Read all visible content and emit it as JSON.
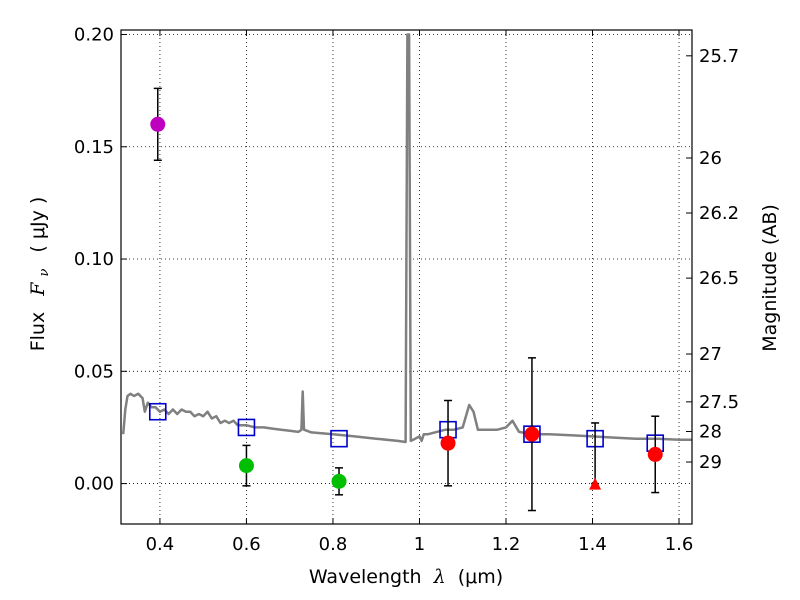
{
  "chart_data": {
    "type": "scatter",
    "xlabel": {
      "prefix": "Wavelength",
      "symbol": "λ",
      "unit": "(μm)"
    },
    "ylabel": {
      "prefix": "Flux",
      "symbol": "F",
      "subscript": "ν",
      "unit": "( μJy )"
    },
    "ylabel_right": "Magnitude (AB)",
    "xlim": [
      0.31,
      1.63
    ],
    "ylim": [
      -0.018,
      0.202
    ],
    "x_ticks": [
      0.4,
      0.6,
      0.8,
      1.0,
      1.2,
      1.4,
      1.6
    ],
    "x_tick_labels": [
      "0.4",
      "0.6",
      "0.8",
      "1",
      "1.2",
      "1.4",
      "1.6"
    ],
    "y_ticks": [
      0.0,
      0.05,
      0.1,
      0.15,
      0.2
    ],
    "y_tick_labels": [
      "0.00",
      "0.05",
      "0.10",
      "0.15",
      "0.20"
    ],
    "right_ticks": [
      {
        "label": "25.7",
        "flux": 0.1905
      },
      {
        "label": "26",
        "flux": 0.145
      },
      {
        "label": "26.2",
        "flux": 0.1205
      },
      {
        "label": "26.5",
        "flux": 0.0915
      },
      {
        "label": "27",
        "flux": 0.0577
      },
      {
        "label": "27.5",
        "flux": 0.0364
      },
      {
        "label": "28",
        "flux": 0.0232
      },
      {
        "label": "29",
        "flux": 0.0096
      }
    ],
    "grid": true,
    "colors": {
      "purple": "#bf00bf",
      "green": "#00bf00",
      "red": "#ff0000",
      "blue": "#0000cc",
      "model": "#808080"
    },
    "measurements": [
      {
        "x": 0.395,
        "y": 0.16,
        "err": 0.016,
        "color": "purple"
      },
      {
        "x": 0.6,
        "y": 0.008,
        "err": 0.009,
        "color": "green"
      },
      {
        "x": 0.814,
        "y": 0.001,
        "err": 0.006,
        "color": "green"
      },
      {
        "x": 1.066,
        "y": 0.018,
        "err": 0.019,
        "color": "red"
      },
      {
        "x": 1.26,
        "y": 0.022,
        "err": 0.034,
        "color": "red"
      },
      {
        "x": 1.545,
        "y": 0.013,
        "err": 0.017,
        "color": "red"
      }
    ],
    "upper_limits": [
      {
        "x": 1.406,
        "y": 0.0,
        "err_up": 0.027,
        "err_down": 0.0,
        "color": "red"
      }
    ],
    "model_points": [
      {
        "x": 0.395,
        "y": 0.032
      },
      {
        "x": 0.6,
        "y": 0.025
      },
      {
        "x": 0.814,
        "y": 0.02
      },
      {
        "x": 1.066,
        "y": 0.024
      },
      {
        "x": 1.26,
        "y": 0.022
      },
      {
        "x": 1.406,
        "y": 0.02
      },
      {
        "x": 1.545,
        "y": 0.018
      }
    ],
    "model_spectrum": [
      [
        0.315,
        0.022
      ],
      [
        0.32,
        0.033
      ],
      [
        0.325,
        0.039
      ],
      [
        0.332,
        0.04
      ],
      [
        0.34,
        0.039
      ],
      [
        0.35,
        0.04
      ],
      [
        0.36,
        0.038
      ],
      [
        0.365,
        0.032
      ],
      [
        0.372,
        0.036
      ],
      [
        0.38,
        0.034
      ],
      [
        0.39,
        0.034
      ],
      [
        0.4,
        0.032
      ],
      [
        0.41,
        0.033
      ],
      [
        0.42,
        0.031
      ],
      [
        0.43,
        0.033
      ],
      [
        0.44,
        0.031
      ],
      [
        0.45,
        0.033
      ],
      [
        0.46,
        0.032
      ],
      [
        0.47,
        0.032
      ],
      [
        0.48,
        0.03
      ],
      [
        0.49,
        0.031
      ],
      [
        0.5,
        0.03
      ],
      [
        0.51,
        0.032
      ],
      [
        0.52,
        0.029
      ],
      [
        0.53,
        0.03
      ],
      [
        0.54,
        0.027
      ],
      [
        0.55,
        0.028
      ],
      [
        0.56,
        0.027
      ],
      [
        0.57,
        0.028
      ],
      [
        0.58,
        0.026
      ],
      [
        0.6,
        0.026
      ],
      [
        0.62,
        0.025
      ],
      [
        0.64,
        0.025
      ],
      [
        0.66,
        0.0245
      ],
      [
        0.68,
        0.024
      ],
      [
        0.7,
        0.0235
      ],
      [
        0.72,
        0.023
      ],
      [
        0.727,
        0.024
      ],
      [
        0.73,
        0.041
      ],
      [
        0.733,
        0.024
      ],
      [
        0.75,
        0.0228
      ],
      [
        0.8,
        0.022
      ],
      [
        0.85,
        0.021
      ],
      [
        0.9,
        0.02
      ],
      [
        0.95,
        0.019
      ],
      [
        0.968,
        0.0185
      ],
      [
        0.972,
        0.2
      ],
      [
        0.976,
        0.2
      ],
      [
        0.98,
        0.019
      ],
      [
        0.99,
        0.02
      ],
      [
        1.0,
        0.021
      ],
      [
        1.005,
        0.019
      ],
      [
        1.01,
        0.022
      ],
      [
        1.02,
        0.022
      ],
      [
        1.04,
        0.023
      ],
      [
        1.06,
        0.024
      ],
      [
        1.08,
        0.024
      ],
      [
        1.1,
        0.025
      ],
      [
        1.115,
        0.035
      ],
      [
        1.125,
        0.032
      ],
      [
        1.135,
        0.024
      ],
      [
        1.15,
        0.024
      ],
      [
        1.18,
        0.024
      ],
      [
        1.2,
        0.025
      ],
      [
        1.215,
        0.028
      ],
      [
        1.23,
        0.023
      ],
      [
        1.26,
        0.022
      ],
      [
        1.3,
        0.022
      ],
      [
        1.35,
        0.0215
      ],
      [
        1.4,
        0.021
      ],
      [
        1.45,
        0.0205
      ],
      [
        1.5,
        0.02
      ],
      [
        1.55,
        0.02
      ],
      [
        1.6,
        0.0195
      ],
      [
        1.63,
        0.0195
      ]
    ]
  }
}
